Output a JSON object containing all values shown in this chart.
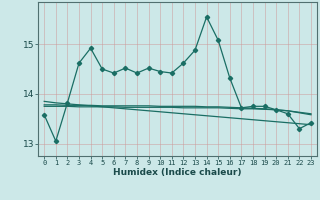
{
  "xlabel": "Humidex (Indice chaleur)",
  "bg_color": "#cce8e8",
  "grid_color": "#aacccc",
  "line_color": "#1a6e64",
  "x": [
    0,
    1,
    2,
    3,
    4,
    5,
    6,
    7,
    8,
    9,
    10,
    11,
    12,
    13,
    14,
    15,
    16,
    17,
    18,
    19,
    20,
    21,
    22,
    23
  ],
  "y_jagged": [
    13.58,
    13.05,
    13.82,
    14.62,
    14.92,
    14.5,
    14.42,
    14.52,
    14.42,
    14.52,
    14.45,
    14.42,
    14.62,
    14.88,
    15.55,
    15.08,
    14.32,
    13.72,
    13.75,
    13.75,
    13.68,
    13.6,
    13.3,
    13.42
  ],
  "y_diagonal": [
    13.85,
    13.82,
    13.8,
    13.78,
    13.76,
    13.74,
    13.72,
    13.7,
    13.68,
    13.66,
    13.64,
    13.62,
    13.6,
    13.58,
    13.56,
    13.54,
    13.52,
    13.5,
    13.48,
    13.46,
    13.44,
    13.42,
    13.4,
    13.38
  ],
  "y_flat1": [
    13.78,
    13.78,
    13.77,
    13.77,
    13.77,
    13.76,
    13.76,
    13.76,
    13.76,
    13.76,
    13.75,
    13.75,
    13.75,
    13.75,
    13.74,
    13.74,
    13.73,
    13.72,
    13.71,
    13.7,
    13.68,
    13.66,
    13.62,
    13.58
  ],
  "y_flat2": [
    13.75,
    13.75,
    13.75,
    13.74,
    13.74,
    13.74,
    13.74,
    13.73,
    13.73,
    13.73,
    13.73,
    13.73,
    13.72,
    13.72,
    13.72,
    13.72,
    13.71,
    13.7,
    13.7,
    13.69,
    13.68,
    13.66,
    13.63,
    13.6
  ],
  "ylim": [
    12.75,
    15.85
  ],
  "yticks": [
    13,
    14,
    15
  ],
  "xticks": [
    0,
    1,
    2,
    3,
    4,
    5,
    6,
    7,
    8,
    9,
    10,
    11,
    12,
    13,
    14,
    15,
    16,
    17,
    18,
    19,
    20,
    21,
    22,
    23
  ]
}
